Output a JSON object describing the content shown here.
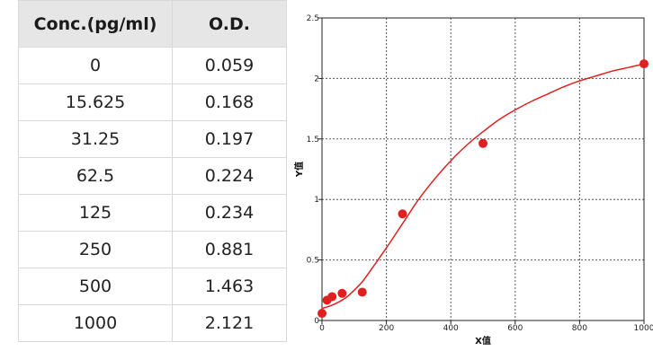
{
  "table": {
    "headers": [
      "Conc.(pg/ml)",
      "O.D."
    ],
    "rows": [
      [
        "0",
        "0.059"
      ],
      [
        "15.625",
        "0.168"
      ],
      [
        "31.25",
        "0.197"
      ],
      [
        "62.5",
        "0.224"
      ],
      [
        "125",
        "0.234"
      ],
      [
        "250",
        "0.881"
      ],
      [
        "500",
        "1.463"
      ],
      [
        "1000",
        "2.121"
      ]
    ]
  },
  "chart_data": {
    "type": "scatter",
    "title": "",
    "xlabel": "X值",
    "ylabel": "Y值",
    "xlim": [
      0,
      1000
    ],
    "ylim": [
      0,
      2.5
    ],
    "x_ticks": [
      "0",
      "200",
      "400",
      "600",
      "800",
      "1000"
    ],
    "y_ticks": [
      "0",
      "0.5",
      "1",
      "1.5",
      "2",
      "2.5"
    ],
    "grid": true,
    "points": {
      "x": [
        0,
        15.625,
        31.25,
        62.5,
        125,
        250,
        500,
        1000
      ],
      "y": [
        0.059,
        0.168,
        0.197,
        0.224,
        0.234,
        0.881,
        1.463,
        2.121
      ]
    },
    "fit_curve": {
      "x": [
        0,
        25,
        50,
        75,
        100,
        125,
        150,
        200,
        250,
        300,
        350,
        400,
        450,
        500,
        550,
        600,
        650,
        700,
        750,
        800,
        850,
        900,
        950,
        1000
      ],
      "y": [
        0.1,
        0.12,
        0.15,
        0.19,
        0.25,
        0.32,
        0.41,
        0.6,
        0.8,
        1.0,
        1.17,
        1.32,
        1.45,
        1.56,
        1.66,
        1.74,
        1.81,
        1.87,
        1.93,
        1.98,
        2.02,
        2.06,
        2.09,
        2.12
      ]
    },
    "colors": {
      "points": "#e02020",
      "curve": "#e02020",
      "grid": "#555555",
      "axis": "#222222"
    }
  }
}
